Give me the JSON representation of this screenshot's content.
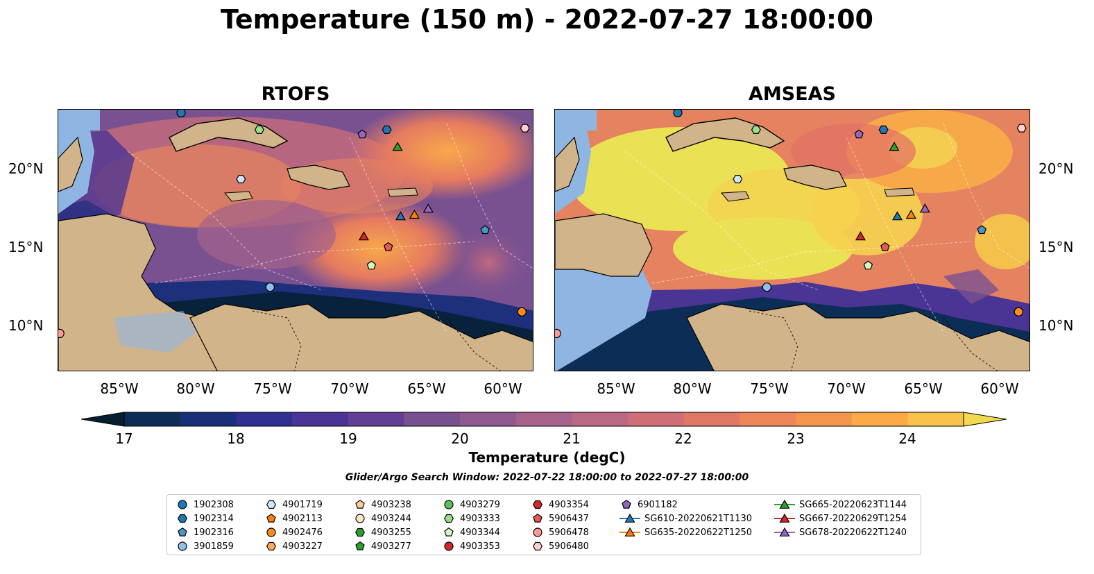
{
  "title": "Temperature (150 m) - 2022-07-27 18:00:00",
  "panels": [
    {
      "name": "RTOFS"
    },
    {
      "name": "AMSEAS"
    }
  ],
  "axes": {
    "lon_labels": [
      "85°W",
      "80°W",
      "75°W",
      "70°W",
      "65°W",
      "60°W"
    ],
    "lat_labels": [
      "20°N",
      "15°N",
      "10°N"
    ]
  },
  "colorbar": {
    "label": "Temperature (degC)",
    "ticks": [
      "17",
      "18",
      "19",
      "20",
      "21",
      "22",
      "23",
      "24"
    ],
    "range": [
      17,
      24.5
    ],
    "colors": [
      "#04202f",
      "#0c2d55",
      "#1a2f7a",
      "#302f92",
      "#4a3495",
      "#623e94",
      "#785090",
      "#8f5a8e",
      "#a6628a",
      "#bb6882",
      "#d06e77",
      "#e17865",
      "#ef8658",
      "#f6964c",
      "#fbaa46",
      "#f9c24a",
      "#f1da4f"
    ]
  },
  "search_window": "Glider/Argo Search Window: 2022-07-22 18:00:00 to 2022-07-27 18:00:00",
  "legend": [
    [
      {
        "label": "1902308",
        "marker": "circle",
        "color": "#1f77b4"
      },
      {
        "label": "1902314",
        "marker": "hexagon",
        "color": "#1f77b4"
      },
      {
        "label": "1902316",
        "marker": "pentagon",
        "color": "#4c95c9"
      },
      {
        "label": "3901859",
        "marker": "circle",
        "color": "#8fc0e8"
      }
    ],
    [
      {
        "label": "4901719",
        "marker": "hexagon",
        "color": "#cfe6f7"
      },
      {
        "label": "4902113",
        "marker": "pentagon",
        "color": "#ff7f0e"
      },
      {
        "label": "4902476",
        "marker": "circle",
        "color": "#ff8c1a"
      },
      {
        "label": "4903227",
        "marker": "hexagon",
        "color": "#ffaa5e"
      }
    ],
    [
      {
        "label": "4903238",
        "marker": "pentagon",
        "color": "#ffcc99"
      },
      {
        "label": "4903244",
        "marker": "circle",
        "color": "#ffe5c8"
      },
      {
        "label": "4903255",
        "marker": "hexagon",
        "color": "#2ca02c"
      },
      {
        "label": "4903277",
        "marker": "pentagon",
        "color": "#2ca02c"
      }
    ],
    [
      {
        "label": "4903279",
        "marker": "circle",
        "color": "#5cc05c"
      },
      {
        "label": "4903333",
        "marker": "hexagon",
        "color": "#98df8a"
      },
      {
        "label": "4903344",
        "marker": "pentagon",
        "color": "#d4f7c8"
      },
      {
        "label": "4903353",
        "marker": "circle",
        "color": "#d62728"
      }
    ],
    [
      {
        "label": "4903354",
        "marker": "hexagon",
        "color": "#d62728"
      },
      {
        "label": "5906437",
        "marker": "pentagon",
        "color": "#e8585a"
      },
      {
        "label": "5906478",
        "marker": "circle",
        "color": "#ff9896"
      },
      {
        "label": "5906480",
        "marker": "hexagon",
        "color": "#ffd0ce"
      }
    ],
    [
      {
        "label": "6901182",
        "marker": "pentagon",
        "color": "#9467bd"
      },
      {
        "label": "SG610-20220621T1130",
        "marker": "triangle",
        "color": "#1f77b4"
      },
      {
        "label": "SG635-20220622T1250",
        "marker": "triangle",
        "color": "#ff7f0e"
      }
    ],
    [
      {
        "label": "SG665-20220623T1144",
        "marker": "triangle",
        "color": "#2ca02c"
      },
      {
        "label": "SG667-20220629T1254",
        "marker": "triangle",
        "color": "#d62728"
      },
      {
        "label": "SG678-20220622T1240",
        "marker": "triangle",
        "color": "#9467bd"
      }
    ]
  ],
  "observations": [
    {
      "id": "1902308",
      "lon": -81.0,
      "lat": 23.8
    },
    {
      "id": "4903333",
      "lon": -75.9,
      "lat": 22.7
    },
    {
      "id": "6901182",
      "lon": -69.2,
      "lat": 22.4
    },
    {
      "id": "1902314",
      "lon": -67.6,
      "lat": 22.7
    },
    {
      "id": "SG665-20220623T1144",
      "lon": -66.9,
      "lat": 21.6
    },
    {
      "id": "4901719",
      "lon": -77.1,
      "lat": 19.5
    },
    {
      "id": "5906480",
      "lon": -58.6,
      "lat": 22.8
    },
    {
      "id": "SG610-20220621T1130",
      "lon": -66.7,
      "lat": 17.1
    },
    {
      "id": "SG635-20220622T1250",
      "lon": -65.8,
      "lat": 17.2
    },
    {
      "id": "SG678-20220622T1240",
      "lon": -64.9,
      "lat": 17.6
    },
    {
      "id": "1902316",
      "lon": -61.2,
      "lat": 16.2
    },
    {
      "id": "SG667-20220629T1254",
      "lon": -69.1,
      "lat": 15.8
    },
    {
      "id": "5906437",
      "lon": -67.5,
      "lat": 15.1
    },
    {
      "id": "4903344",
      "lon": -68.6,
      "lat": 13.9
    },
    {
      "id": "3901859",
      "lon": -75.2,
      "lat": 12.5
    },
    {
      "id": "4902476",
      "lon": -58.8,
      "lat": 10.9
    },
    {
      "id": "5906478",
      "lon": -88.9,
      "lat": 9.5
    }
  ]
}
